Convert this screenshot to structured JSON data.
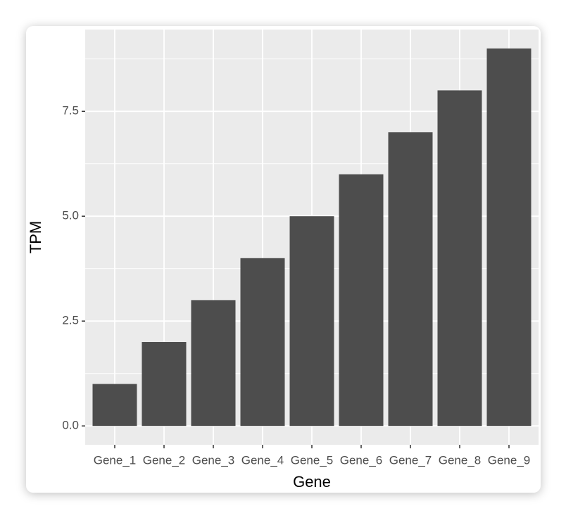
{
  "chart_data": {
    "type": "bar",
    "x_label": "Gene",
    "y_label": "TPM",
    "categories": [
      "Gene_1",
      "Gene_2",
      "Gene_3",
      "Gene_4",
      "Gene_5",
      "Gene_6",
      "Gene_7",
      "Gene_8",
      "Gene_9"
    ],
    "values": [
      1,
      2,
      3,
      4,
      5,
      6,
      7,
      8,
      9
    ],
    "color": "#4d4d4d",
    "ylim": [
      -0.45,
      9.45
    ],
    "yticks": [
      {
        "value": 0,
        "label": "0.0"
      },
      {
        "value": 2.5,
        "label": "2.5"
      },
      {
        "value": 5,
        "label": "5.0"
      },
      {
        "value": 7.5,
        "label": "7.5"
      }
    ],
    "grid": true
  }
}
